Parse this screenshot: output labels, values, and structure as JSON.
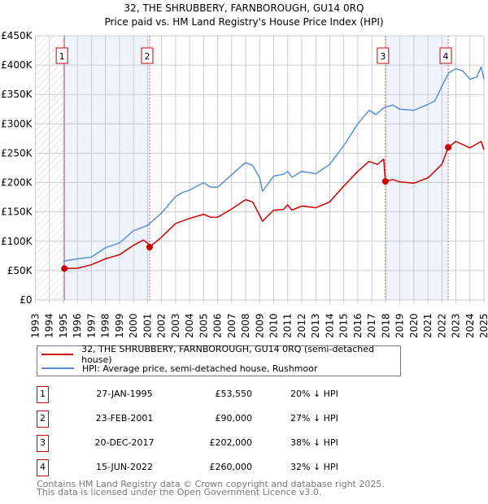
{
  "chart_data": {
    "type": "line",
    "title": "32, THE SHRUBBERY, FARNBOROUGH, GU14 0RQ",
    "subtitle": "Price paid vs. HM Land Registry's House Price Index (HPI)",
    "xlim": [
      1993,
      2025
    ],
    "ylim": [
      0,
      450000
    ],
    "x_ticks": [
      "1993",
      "1994",
      "1995",
      "1996",
      "1997",
      "1998",
      "1999",
      "2000",
      "2001",
      "2002",
      "2003",
      "2004",
      "2005",
      "2006",
      "2007",
      "2008",
      "2009",
      "2010",
      "2011",
      "2012",
      "2013",
      "2014",
      "2015",
      "2016",
      "2017",
      "2018",
      "2019",
      "2020",
      "2021",
      "2022",
      "2023",
      "2024",
      "2025"
    ],
    "y_ticks": [
      {
        "v": 0,
        "label": "£0"
      },
      {
        "v": 50000,
        "label": "£50K"
      },
      {
        "v": 100000,
        "label": "£100K"
      },
      {
        "v": 150000,
        "label": "£150K"
      },
      {
        "v": 200000,
        "label": "£200K"
      },
      {
        "v": 250000,
        "label": "£250K"
      },
      {
        "v": 300000,
        "label": "£300K"
      },
      {
        "v": 350000,
        "label": "£350K"
      },
      {
        "v": 400000,
        "label": "£400K"
      },
      {
        "v": 450000,
        "label": "£450K"
      }
    ],
    "grid": true,
    "colors": {
      "property": "#cc0000",
      "hpi": "#5b8fd4",
      "shade": "#eef3fc"
    },
    "series": [
      {
        "name": "32, THE SHRUBBERY, FARNBOROUGH, GU14 0RQ (semi-detached house)",
        "key": "property",
        "points": [
          [
            1995.07,
            53550
          ],
          [
            1996,
            54000
          ],
          [
            1997,
            60000
          ],
          [
            1998,
            70000
          ],
          [
            1999,
            77000
          ],
          [
            2000,
            93000
          ],
          [
            2000.7,
            102000
          ],
          [
            2001.1,
            95000
          ],
          [
            2001.15,
            90000
          ],
          [
            2002,
            107000
          ],
          [
            2003,
            130000
          ],
          [
            2004,
            139000
          ],
          [
            2005,
            146000
          ],
          [
            2005.5,
            141000
          ],
          [
            2006,
            141000
          ],
          [
            2007,
            155000
          ],
          [
            2008,
            171000
          ],
          [
            2008.5,
            167000
          ],
          [
            2009,
            144000
          ],
          [
            2009.2,
            134000
          ],
          [
            2010,
            153000
          ],
          [
            2010.7,
            154000
          ],
          [
            2011,
            162000
          ],
          [
            2011.3,
            153000
          ],
          [
            2012,
            160000
          ],
          [
            2013,
            157000
          ],
          [
            2014,
            167000
          ],
          [
            2015,
            194000
          ],
          [
            2016,
            219000
          ],
          [
            2016.8,
            236000
          ],
          [
            2017.4,
            231000
          ],
          [
            2017.85,
            240000
          ],
          [
            2017.97,
            202000
          ],
          [
            2018.5,
            205000
          ],
          [
            2019,
            201000
          ],
          [
            2020,
            199000
          ],
          [
            2021,
            208000
          ],
          [
            2022,
            231000
          ],
          [
            2022.45,
            260000
          ],
          [
            2023,
            270000
          ],
          [
            2024,
            259000
          ],
          [
            2024.8,
            270000
          ],
          [
            2025,
            256000
          ]
        ]
      },
      {
        "name": "HPI: Average price, semi-detached house, Rushmoor",
        "key": "hpi",
        "points": [
          [
            1995,
            66000
          ],
          [
            1996,
            70000
          ],
          [
            1997,
            73000
          ],
          [
            1998,
            89000
          ],
          [
            1999,
            97000
          ],
          [
            2000,
            118000
          ],
          [
            2001,
            127000
          ],
          [
            2002,
            148000
          ],
          [
            2003,
            176000
          ],
          [
            2003.5,
            183000
          ],
          [
            2004,
            187000
          ],
          [
            2005,
            200000
          ],
          [
            2005.5,
            192000
          ],
          [
            2006,
            192000
          ],
          [
            2007,
            213000
          ],
          [
            2007.5,
            224000
          ],
          [
            2008,
            234000
          ],
          [
            2008.5,
            229000
          ],
          [
            2009,
            208000
          ],
          [
            2009.2,
            185000
          ],
          [
            2010,
            211000
          ],
          [
            2010.7,
            214000
          ],
          [
            2011,
            219000
          ],
          [
            2011.3,
            209000
          ],
          [
            2012,
            219000
          ],
          [
            2013,
            215000
          ],
          [
            2014,
            231000
          ],
          [
            2015,
            263000
          ],
          [
            2016,
            300000
          ],
          [
            2016.8,
            323000
          ],
          [
            2017.3,
            316000
          ],
          [
            2017.9,
            328000
          ],
          [
            2018.5,
            332000
          ],
          [
            2019,
            325000
          ],
          [
            2020,
            323000
          ],
          [
            2021,
            333000
          ],
          [
            2021.5,
            339000
          ],
          [
            2022,
            364000
          ],
          [
            2022.5,
            387000
          ],
          [
            2023,
            394000
          ],
          [
            2023.5,
            390000
          ],
          [
            2024,
            376000
          ],
          [
            2024.5,
            380000
          ],
          [
            2024.8,
            397000
          ],
          [
            2025,
            376000
          ]
        ]
      }
    ],
    "shaded_ranges": [
      [
        1995.07,
        2001.15
      ],
      [
        2017.97,
        2022.45
      ]
    ],
    "hatched_range": [
      1993,
      1995.07
    ],
    "sales": [
      {
        "id": "1",
        "x": 1995.07,
        "price": 53550
      },
      {
        "id": "2",
        "x": 2001.15,
        "price": 90000
      },
      {
        "id": "3",
        "x": 2017.97,
        "price": 202000
      },
      {
        "id": "4",
        "x": 2022.45,
        "price": 260000
      }
    ]
  },
  "legend": {
    "property": "32, THE SHRUBBERY, FARNBOROUGH, GU14 0RQ (semi-detached house)",
    "hpi": "HPI: Average price, semi-detached house, Rushmoor"
  },
  "table": [
    {
      "id": "1",
      "date": "27-JAN-1995",
      "price": "£53,550",
      "hpi": "20% ↓ HPI"
    },
    {
      "id": "2",
      "date": "23-FEB-2001",
      "price": "£90,000",
      "hpi": "27% ↓ HPI"
    },
    {
      "id": "3",
      "date": "20-DEC-2017",
      "price": "£202,000",
      "hpi": "38% ↓ HPI"
    },
    {
      "id": "4",
      "date": "15-JUN-2022",
      "price": "£260,000",
      "hpi": "32% ↓ HPI"
    }
  ],
  "footer": {
    "line1": "Contains HM Land Registry data © Crown copyright and database right 2025.",
    "line2": "This data is licensed under the Open Government Licence v3.0."
  }
}
